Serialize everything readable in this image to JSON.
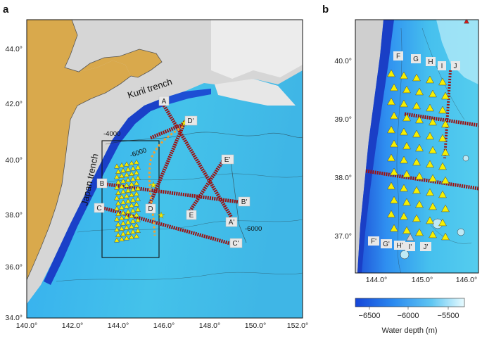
{
  "panels": {
    "a": {
      "label": "a",
      "trench_labels": [
        "Kuril trench",
        "Japan trench"
      ],
      "lon_ticks": [
        "140.0°",
        "142.0°",
        "144.0°",
        "146.0°",
        "148.0°",
        "150.0°",
        "152.0°"
      ],
      "lat_ticks": [
        "44.0°",
        "42.0°",
        "40.0°",
        "38.0°",
        "36.0°",
        "34.0°"
      ],
      "contour_labels": [
        "-4000",
        "-6000",
        "-6000"
      ],
      "profile_labels": [
        "A",
        "A'",
        "B",
        "B'",
        "C",
        "C'",
        "D",
        "D'",
        "E",
        "E'"
      ]
    },
    "b": {
      "label": "b",
      "lon_ticks": [
        "144.0°",
        "145.0°",
        "146.0°"
      ],
      "lat_ticks": [
        "40.0°",
        "39.0°",
        "38.0°",
        "37.0°"
      ],
      "station_labels": [
        "F",
        "G",
        "H",
        "I",
        "J",
        "F'",
        "G'",
        "H'",
        "I'",
        "J'"
      ]
    }
  },
  "colorbar": {
    "ticks": [
      "−6500",
      "−6000",
      "−5500"
    ],
    "title": "Water depth (m)",
    "colors": [
      "#1545d8",
      "#2a8af0",
      "#5fc6f2",
      "#e8fbff"
    ]
  },
  "colors": {
    "land": "#d9a94c",
    "deep_ocean": "#2f9fe0",
    "abyssal": "#46c7ea",
    "shelf": "#dcdcdc",
    "trench": "#1a40c8",
    "profile_line": "#9b1212",
    "station": "#f6ef00",
    "epicenter": "#f6ef00",
    "dotted_line": "#f2a030"
  }
}
